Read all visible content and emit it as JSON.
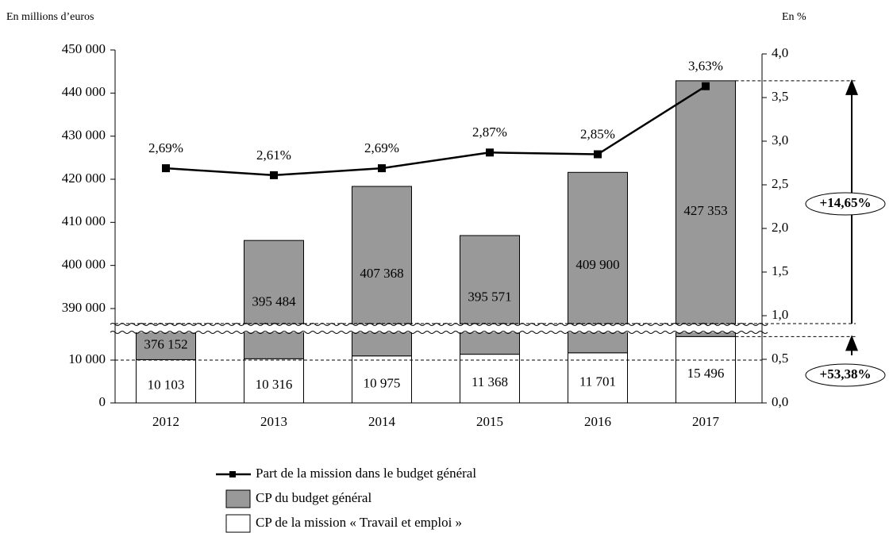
{
  "chart_data": {
    "type": "bar",
    "y_axis_label": "En millions d’euros",
    "y2_axis_label": "En %",
    "categories": [
      "2012",
      "2013",
      "2014",
      "2015",
      "2016",
      "2017"
    ],
    "series": [
      {
        "name": "CP de la mission « Travail et emploi »",
        "color": "#ffffff",
        "values": [
          10103,
          10316,
          10975,
          11368,
          11701,
          15496
        ],
        "value_labels": [
          "10 103",
          "10 316",
          "10 975",
          "11 368",
          "11 701",
          "15 496"
        ]
      },
      {
        "name": "CP du budget général",
        "color": "#999999",
        "values": [
          376152,
          395484,
          407368,
          395571,
          409900,
          427353
        ],
        "value_labels": [
          "376 152",
          "395 484",
          "407 368",
          "395 571",
          "409 900",
          "427 353"
        ]
      },
      {
        "name": "Part de la mission dans le budget général",
        "type": "line",
        "axis": "y2",
        "color": "#000000",
        "values": [
          2.69,
          2.61,
          2.69,
          2.87,
          2.85,
          3.63
        ],
        "value_labels": [
          "2,69%",
          "2,61%",
          "2,69%",
          "2,87%",
          "2,85%",
          "3,63%"
        ]
      }
    ],
    "stacked": true,
    "axis_break": true,
    "ylim": [
      0,
      450000
    ],
    "yticks": [
      0,
      {
        "value": 10000,
        "label": "10 000"
      },
      {
        "value": 390000,
        "label": "390 000"
      },
      {
        "value": 400000,
        "label": "400 000"
      },
      {
        "value": 410000,
        "label": "410 000"
      },
      {
        "value": 420000,
        "label": "420 000"
      },
      {
        "value": 430000,
        "label": "430 000"
      },
      {
        "value": 440000,
        "label": "440 000"
      },
      {
        "value": 450000,
        "label": "450 000"
      }
    ],
    "y2lim": [
      0,
      4
    ],
    "y2ticks": [
      {
        "value": 0,
        "label": "0,0"
      },
      {
        "value": 0.5,
        "label": "0,5"
      },
      {
        "value": 1,
        "label": "1,0"
      },
      {
        "value": 1.5,
        "label": "1,5"
      },
      {
        "value": 2,
        "label": "2,0"
      },
      {
        "value": 2.5,
        "label": "2,5"
      },
      {
        "value": 3,
        "label": "3,0"
      },
      {
        "value": 3.5,
        "label": "3,5"
      },
      {
        "value": 4,
        "label": "4,0"
      }
    ],
    "annotations": [
      "+14,65%",
      "+53,38%"
    ]
  }
}
